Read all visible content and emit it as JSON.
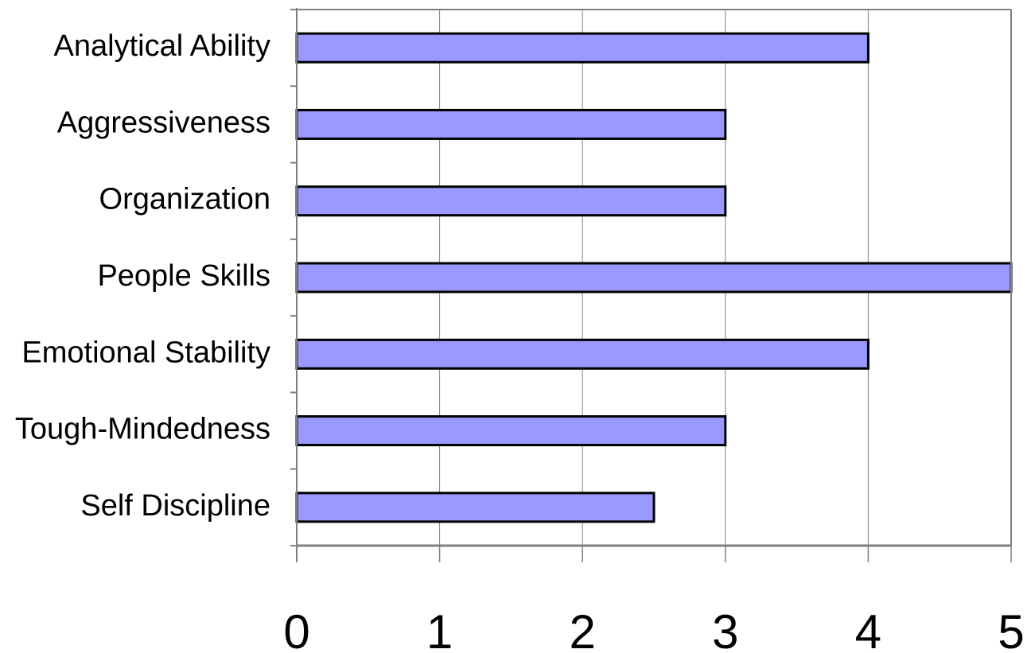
{
  "chart_data": {
    "type": "bar",
    "orientation": "horizontal",
    "categories": [
      "Analytical Ability",
      "Aggressiveness",
      "Organization",
      "People Skills",
      "Emotional Stability",
      "Tough-Mindedness",
      "Self Discipline"
    ],
    "values": [
      4,
      3,
      3,
      5,
      4,
      3,
      2.5
    ],
    "xlim": [
      0,
      5
    ],
    "xticks": [
      "0",
      "1",
      "2",
      "3",
      "4",
      "5"
    ],
    "grid": "vertical",
    "bar_color": "#9999ff",
    "bar_edge_color": "#000000",
    "title": "",
    "xlabel": "",
    "ylabel": ""
  }
}
